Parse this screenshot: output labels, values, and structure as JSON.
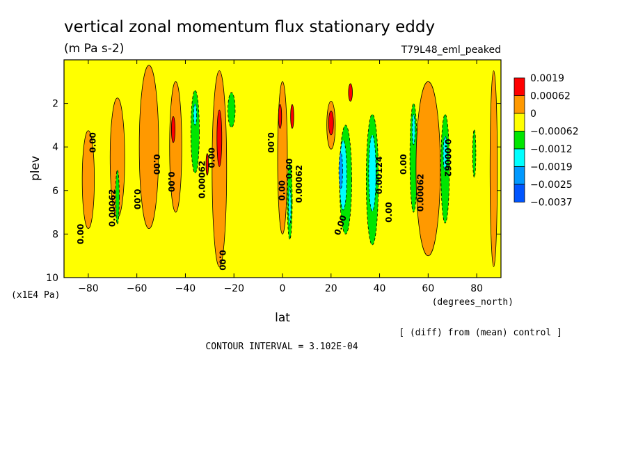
{
  "chart_data": {
    "type": "heatmap",
    "title": "vertical zonal momentum flux stationary eddy",
    "units": "(m Pa s-2)",
    "experiment": "T79L48_eml_peaked",
    "xlabel": "lat",
    "xunits": "(degrees_north)",
    "ylabel": "plev",
    "yunits": "(x1E4 Pa)",
    "xlim": [
      -90,
      90
    ],
    "ylim": [
      10,
      0
    ],
    "xticks": [
      -80,
      -60,
      -40,
      -20,
      0,
      20,
      40,
      60,
      80
    ],
    "xtick_labels": [
      "−80",
      "−60",
      "−40",
      "−20",
      "0",
      "20",
      "40",
      "60",
      "80"
    ],
    "yticks": [
      2,
      4,
      6,
      8,
      10
    ],
    "contour_interval_text": "CONTOUR INTERVAL = 3.102E-04",
    "comparison_note": "[ (diff) from (mean) control ]",
    "legend": {
      "placement": "right",
      "levels": [
        "0.0019",
        "0.00062",
        "0",
        "−0.00062",
        "−0.0012",
        "−0.0019",
        "−0.0025",
        "−0.0037"
      ],
      "colors": [
        "#ff0000",
        "#ff9900",
        "#ffff00",
        "#00e600",
        "#00ffff",
        "#0099ff",
        "#0055ff"
      ]
    },
    "background_color": "#ffff00",
    "features": [
      {
        "kind": "positive",
        "level": 1,
        "lat": -80,
        "plev": 5.5,
        "w": 5,
        "h": 4.5
      },
      {
        "kind": "positive",
        "level": 1,
        "lat": -68,
        "plev": 4.5,
        "w": 6,
        "h": 5.5
      },
      {
        "kind": "positive",
        "level": 1,
        "lat": -55,
        "plev": 4.0,
        "w": 8,
        "h": 7.5
      },
      {
        "kind": "positive",
        "level": 1,
        "lat": -44,
        "plev": 4.0,
        "w": 5,
        "h": 6
      },
      {
        "kind": "positive",
        "level": 2,
        "lat": -45,
        "plev": 3.2,
        "w": 1.5,
        "h": 1.2
      },
      {
        "kind": "negative",
        "level": 1,
        "lat": -68,
        "plev": 6.3,
        "w": 1.5,
        "h": 2.5
      },
      {
        "kind": "negative",
        "level": 1,
        "lat": -36,
        "plev": 3.3,
        "w": 3.5,
        "h": 3.8
      },
      {
        "kind": "negative",
        "level": 2,
        "lat": -36,
        "plev": 2.5,
        "w": 1.3,
        "h": 1.0
      },
      {
        "kind": "positive",
        "level": 1,
        "lat": -26,
        "plev": 5.0,
        "w": 6,
        "h": 9
      },
      {
        "kind": "positive",
        "level": 2,
        "lat": -26,
        "plev": 3.6,
        "w": 2,
        "h": 2.6
      },
      {
        "kind": "positive",
        "level": 2,
        "lat": -31,
        "plev": 4.8,
        "w": 1,
        "h": 1
      },
      {
        "kind": "negative",
        "level": 1,
        "lat": -21,
        "plev": 2.3,
        "w": 3,
        "h": 1.6
      },
      {
        "kind": "positive",
        "level": 1,
        "lat": 0,
        "plev": 4.5,
        "w": 4,
        "h": 7
      },
      {
        "kind": "positive",
        "level": 2,
        "lat": -1,
        "plev": 2.6,
        "w": 1.3,
        "h": 1.1
      },
      {
        "kind": "positive",
        "level": 2,
        "lat": 4,
        "plev": 2.6,
        "w": 1.3,
        "h": 1.1
      },
      {
        "kind": "negative",
        "level": 1,
        "lat": 3,
        "plev": 6.5,
        "w": 2,
        "h": 3.5
      },
      {
        "kind": "negative",
        "level": 2,
        "lat": 3,
        "plev": 6.7,
        "w": 1,
        "h": 1.8
      },
      {
        "kind": "positive",
        "level": 1,
        "lat": 20,
        "plev": 3.0,
        "w": 3.5,
        "h": 2.2
      },
      {
        "kind": "positive",
        "level": 2,
        "lat": 20,
        "plev": 2.9,
        "w": 2,
        "h": 1.1
      },
      {
        "kind": "positive",
        "level": 2,
        "lat": 28,
        "plev": 1.5,
        "w": 1.6,
        "h": 0.8
      },
      {
        "kind": "negative",
        "level": 1,
        "lat": 26,
        "plev": 5.5,
        "w": 5,
        "h": 5
      },
      {
        "kind": "negative",
        "level": 2,
        "lat": 25,
        "plev": 5.3,
        "w": 3,
        "h": 3.2
      },
      {
        "kind": "negative",
        "level": 3,
        "lat": 24,
        "plev": 5.1,
        "w": 1.5,
        "h": 1.7
      },
      {
        "kind": "negative",
        "level": 1,
        "lat": 37,
        "plev": 5.5,
        "w": 5,
        "h": 6
      },
      {
        "kind": "negative",
        "level": 2,
        "lat": 37,
        "plev": 5.2,
        "w": 3,
        "h": 3.5
      },
      {
        "kind": "negative",
        "level": 1,
        "lat": 54,
        "plev": 4.5,
        "w": 3,
        "h": 5
      },
      {
        "kind": "negative",
        "level": 2,
        "lat": 54,
        "plev": 3.2,
        "w": 1.2,
        "h": 1.4
      },
      {
        "kind": "negative",
        "level": 1,
        "lat": 67,
        "plev": 5.0,
        "w": 3.5,
        "h": 5
      },
      {
        "kind": "negative",
        "level": 2,
        "lat": 67,
        "plev": 4.3,
        "w": 1.6,
        "h": 1.6
      },
      {
        "kind": "negative",
        "level": 1,
        "lat": 79,
        "plev": 4.3,
        "w": 1.3,
        "h": 2.2
      },
      {
        "kind": "positive",
        "level": 1,
        "lat": 60,
        "plev": 5.0,
        "w": 10,
        "h": 8
      },
      {
        "kind": "positive",
        "level": 1,
        "lat": 87,
        "plev": 5.0,
        "w": 3,
        "h": 9
      }
    ],
    "contour_labels": [
      {
        "text": "0.00",
        "lat": -83,
        "plev": 8.0,
        "rotate": -90
      },
      {
        "text": "0.00",
        "lat": -78,
        "plev": 3.8,
        "rotate": -90
      },
      {
        "text": "0.00062",
        "lat": -70,
        "plev": 6.8,
        "rotate": -90
      },
      {
        "text": "0.00",
        "lat": -60,
        "plev": 6.4,
        "rotate": 90
      },
      {
        "text": "0.00",
        "lat": -52,
        "plev": 4.8,
        "rotate": 90
      },
      {
        "text": "0.00",
        "lat": -46,
        "plev": 5.6,
        "rotate": 90
      },
      {
        "text": "0.00062",
        "lat": -33,
        "plev": 5.5,
        "rotate": -90
      },
      {
        "text": "0.00",
        "lat": -29,
        "plev": 4.5,
        "rotate": -90
      },
      {
        "text": "0.00",
        "lat": -25,
        "plev": 9.2,
        "rotate": 90
      },
      {
        "text": "0.00",
        "lat": -5,
        "plev": 3.8,
        "rotate": 90
      },
      {
        "text": "0.00",
        "lat": 0,
        "plev": 6.0,
        "rotate": -90
      },
      {
        "text": "0.00",
        "lat": 3,
        "plev": 5.0,
        "rotate": -90
      },
      {
        "text": "0.00062",
        "lat": 7,
        "plev": 5.7,
        "rotate": -90
      },
      {
        "text": "0.00",
        "lat": 24,
        "plev": 7.6,
        "rotate": -70
      },
      {
        "text": "0.00124",
        "lat": 40,
        "plev": 5.3,
        "rotate": -90
      },
      {
        "text": "0.00",
        "lat": 44,
        "plev": 7.0,
        "rotate": -90
      },
      {
        "text": "0.00",
        "lat": 50,
        "plev": 4.8,
        "rotate": -90
      },
      {
        "text": "0.00062",
        "lat": 57,
        "plev": 6.1,
        "rotate": -90
      },
      {
        "text": "0.00062",
        "lat": 68,
        "plev": 4.5,
        "rotate": 90
      }
    ]
  }
}
